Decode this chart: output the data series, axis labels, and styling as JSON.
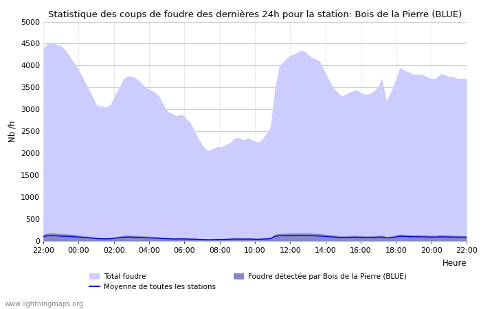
{
  "title": "Statistique des coups de foudre des dernières 24h pour la station: Bois de la Pierre (BLUE)",
  "xlabel": "Heure",
  "ylabel": "Nb /h",
  "ylim": [
    0,
    5000
  ],
  "yticks": [
    0,
    500,
    1000,
    1500,
    2000,
    2500,
    3000,
    3500,
    4000,
    4500,
    5000
  ],
  "xtick_labels": [
    "22:00",
    "00:00",
    "02:00",
    "04:00",
    "06:00",
    "08:00",
    "10:00",
    "12:00",
    "14:00",
    "16:00",
    "18:00",
    "20:00",
    "22:00"
  ],
  "watermark": "www.lightningmaps.org",
  "total_foudre_color": "#ccccff",
  "local_foudre_color": "#8888cc",
  "moyenne_color": "#0000dd",
  "background_color": "#ffffff",
  "grid_color": "#cccccc",
  "x_total": [
    0,
    1,
    2,
    3,
    4,
    5,
    6,
    7,
    8,
    9,
    10,
    11,
    12,
    13,
    14,
    15,
    16,
    17,
    18,
    19,
    20,
    21,
    22,
    23,
    24,
    25,
    26,
    27,
    28,
    29,
    30,
    31,
    32,
    33,
    34,
    35,
    36,
    37,
    38,
    39,
    40,
    41,
    42,
    43,
    44,
    45,
    46,
    47,
    48,
    49,
    50,
    51,
    52,
    53,
    54,
    55,
    56,
    57,
    58,
    59,
    60,
    61,
    62,
    63,
    64,
    65,
    66,
    67,
    68,
    69,
    70,
    71,
    72,
    73,
    74,
    75,
    76,
    77,
    78,
    79,
    80,
    81,
    82,
    83,
    84,
    85,
    86,
    87,
    88,
    89,
    90,
    91,
    92,
    93,
    94,
    95
  ],
  "y_total": [
    4400,
    4500,
    4520,
    4480,
    4450,
    4350,
    4200,
    4050,
    3900,
    3700,
    3500,
    3300,
    3100,
    3080,
    3050,
    3100,
    3300,
    3500,
    3700,
    3760,
    3750,
    3700,
    3600,
    3500,
    3450,
    3400,
    3300,
    3100,
    2950,
    2900,
    2850,
    2900,
    2800,
    2700,
    2500,
    2300,
    2150,
    2050,
    2100,
    2150,
    2150,
    2200,
    2250,
    2350,
    2350,
    2300,
    2350,
    2300,
    2250,
    2300,
    2450,
    2600,
    3500,
    4000,
    4100,
    4200,
    4250,
    4300,
    4350,
    4300,
    4200,
    4150,
    4100,
    3900,
    3700,
    3500,
    3400,
    3300,
    3350,
    3400,
    3450,
    3400,
    3350,
    3350,
    3400,
    3500,
    3700,
    3200,
    3400,
    3650,
    3950,
    3900,
    3850,
    3800,
    3800,
    3800,
    3750,
    3700,
    3700,
    3800,
    3800,
    3750,
    3750,
    3700,
    3700,
    3700
  ],
  "y_local": [
    150,
    180,
    185,
    175,
    165,
    160,
    155,
    145,
    135,
    120,
    110,
    95,
    80,
    75,
    72,
    75,
    90,
    110,
    125,
    130,
    128,
    125,
    118,
    110,
    105,
    100,
    90,
    80,
    75,
    70,
    68,
    72,
    68,
    65,
    60,
    55,
    48,
    42,
    45,
    50,
    52,
    55,
    58,
    65,
    65,
    62,
    65,
    62,
    58,
    62,
    70,
    80,
    155,
    170,
    175,
    180,
    182,
    185,
    188,
    183,
    178,
    172,
    165,
    155,
    145,
    135,
    125,
    115,
    118,
    122,
    128,
    122,
    118,
    115,
    118,
    125,
    132,
    100,
    110,
    130,
    155,
    150,
    145,
    140,
    140,
    138,
    135,
    130,
    130,
    138,
    138,
    133,
    130,
    128,
    125,
    122
  ],
  "y_moyenne": [
    100,
    120,
    122,
    118,
    110,
    107,
    103,
    97,
    90,
    82,
    74,
    65,
    55,
    52,
    50,
    52,
    62,
    74,
    85,
    90,
    87,
    84,
    80,
    74,
    70,
    67,
    62,
    55,
    52,
    48,
    46,
    50,
    46,
    44,
    42,
    38,
    34,
    30,
    32,
    36,
    38,
    40,
    42,
    46,
    46,
    44,
    46,
    44,
    40,
    44,
    48,
    55,
    108,
    118,
    122,
    125,
    127,
    128,
    130,
    127,
    122,
    118,
    113,
    107,
    100,
    93,
    86,
    80,
    82,
    84,
    88,
    84,
    82,
    80,
    82,
    86,
    91,
    70,
    75,
    90,
    108,
    105,
    100,
    97,
    97,
    95,
    93,
    90,
    90,
    95,
    95,
    92,
    90,
    88,
    87,
    85
  ]
}
